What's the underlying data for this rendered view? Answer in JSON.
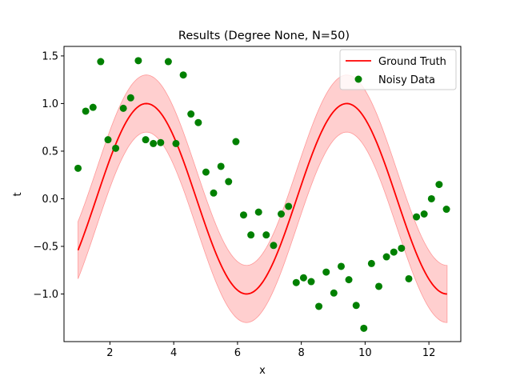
{
  "chart_data": {
    "type": "scatter",
    "title": "Results (Degree None, N=50)",
    "xlabel": "x",
    "ylabel": "t",
    "xlim": [
      0.56,
      13.0
    ],
    "ylim": [
      -1.5,
      1.6
    ],
    "xticks": [
      2,
      4,
      6,
      8,
      10,
      12
    ],
    "yticks": [
      -1.0,
      -0.5,
      0.0,
      0.5,
      1.0,
      1.5
    ],
    "xtick_labels": [
      "2",
      "4",
      "6",
      "8",
      "10",
      "12"
    ],
    "ytick_labels": [
      "−1.0",
      "−0.5",
      "0.0",
      "0.5",
      "1.0",
      "1.5"
    ],
    "legend_position": "top-right",
    "grid": false,
    "ground_truth": {
      "name": "Ground Truth",
      "color": "#ff0000",
      "function": "sin(x - 1.57)",
      "x_range": [
        1.0,
        12.57
      ],
      "band_halfwidth": 0.3,
      "band_color": "#ffcccc"
    },
    "series": [
      {
        "name": "Noisy Data",
        "color": "#008000",
        "x": [
          1.0,
          1.24,
          1.47,
          1.71,
          1.94,
          2.18,
          2.42,
          2.65,
          2.89,
          3.12,
          3.36,
          3.59,
          3.83,
          4.07,
          4.3,
          4.54,
          4.77,
          5.01,
          5.25,
          5.48,
          5.72,
          5.95,
          6.19,
          6.42,
          6.66,
          6.9,
          7.13,
          7.37,
          7.6,
          7.84,
          8.07,
          8.31,
          8.55,
          8.78,
          9.02,
          9.25,
          9.49,
          9.72,
          9.96,
          10.2,
          10.43,
          10.67,
          10.9,
          11.14,
          11.37,
          11.61,
          11.85,
          12.08,
          12.32,
          12.55
        ],
        "y": [
          0.32,
          0.92,
          0.96,
          1.44,
          0.62,
          0.53,
          0.95,
          1.06,
          1.45,
          0.62,
          0.58,
          0.59,
          1.44,
          0.58,
          1.3,
          0.89,
          0.8,
          0.28,
          0.06,
          0.34,
          0.18,
          0.6,
          -0.17,
          -0.38,
          -0.14,
          -0.38,
          -0.49,
          -0.16,
          -0.08,
          -0.88,
          -0.83,
          -0.87,
          -1.13,
          -0.77,
          -0.99,
          -0.71,
          -0.85,
          -1.12,
          -1.36,
          -0.68,
          -0.92,
          -0.61,
          -0.56,
          -0.52,
          -0.84,
          -0.19,
          -0.16,
          0.0,
          0.15,
          -0.11
        ]
      }
    ]
  }
}
